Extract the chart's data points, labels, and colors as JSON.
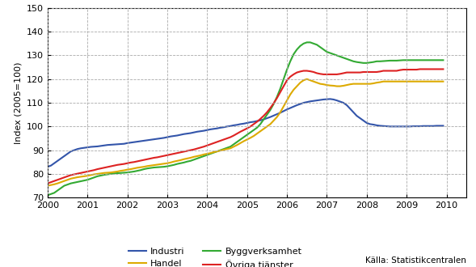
{
  "title": "",
  "ylabel": "Index (2005=100)",
  "source": "Källa: Statistikcentralen",
  "ylim": [
    70,
    150
  ],
  "yticks": [
    70,
    80,
    90,
    100,
    110,
    120,
    130,
    140,
    150
  ],
  "xlim": [
    2000,
    2010.5
  ],
  "xticks": [
    2000,
    2001,
    2002,
    2003,
    2004,
    2005,
    2006,
    2007,
    2008,
    2009,
    2010
  ],
  "colors": {
    "Industri": "#3355aa",
    "Byggverksamhet": "#33aa33",
    "Handel": "#ddaa00",
    "Ovriga": "#dd2222"
  },
  "legend_labels": [
    "Industri",
    "Byggverksamhet",
    "Handel",
    "Övriga tjänster"
  ],
  "Industri": [
    83.0,
    83.5,
    84.5,
    85.5,
    86.5,
    87.5,
    88.5,
    89.5,
    90.0,
    90.5,
    90.8,
    91.0,
    91.2,
    91.4,
    91.5,
    91.6,
    91.8,
    92.0,
    92.2,
    92.3,
    92.4,
    92.5,
    92.6,
    92.7,
    93.0,
    93.2,
    93.4,
    93.6,
    93.8,
    94.0,
    94.2,
    94.4,
    94.6,
    94.8,
    95.0,
    95.2,
    95.5,
    95.8,
    96.0,
    96.2,
    96.5,
    96.8,
    97.0,
    97.2,
    97.5,
    97.8,
    98.0,
    98.2,
    98.5,
    98.8,
    99.0,
    99.2,
    99.5,
    99.7,
    100.0,
    100.2,
    100.5,
    100.7,
    101.0,
    101.2,
    101.5,
    101.8,
    102.0,
    102.3,
    102.6,
    103.0,
    103.5,
    104.0,
    104.6,
    105.2,
    105.8,
    106.5,
    107.2,
    107.8,
    108.4,
    109.0,
    109.5,
    110.0,
    110.3,
    110.6,
    110.8,
    111.0,
    111.2,
    111.4,
    111.5,
    111.6,
    111.4,
    111.0,
    110.5,
    110.0,
    109.0,
    107.5,
    106.0,
    104.5,
    103.5,
    102.5,
    101.5,
    101.0,
    100.8,
    100.5,
    100.3,
    100.2,
    100.1,
    100.0,
    100.0,
    100.0,
    100.0,
    100.0,
    100.0,
    100.0,
    100.1,
    100.1,
    100.1,
    100.2,
    100.2,
    100.2,
    100.2,
    100.3,
    100.3,
    100.3
  ],
  "Byggverksamhet": [
    71.0,
    71.5,
    72.0,
    73.0,
    74.0,
    75.0,
    75.5,
    76.0,
    76.3,
    76.6,
    76.9,
    77.2,
    77.5,
    78.0,
    78.5,
    79.0,
    79.3,
    79.6,
    79.8,
    80.0,
    80.2,
    80.3,
    80.4,
    80.5,
    80.6,
    80.8,
    81.0,
    81.3,
    81.6,
    82.0,
    82.3,
    82.5,
    82.7,
    82.8,
    82.9,
    83.0,
    83.2,
    83.5,
    83.8,
    84.2,
    84.5,
    84.8,
    85.2,
    85.5,
    86.0,
    86.5,
    87.0,
    87.5,
    88.0,
    88.5,
    89.0,
    89.5,
    90.0,
    90.5,
    91.0,
    91.5,
    92.5,
    93.5,
    94.5,
    95.5,
    96.5,
    97.5,
    98.5,
    99.5,
    101.0,
    103.0,
    105.0,
    107.0,
    109.5,
    112.5,
    116.0,
    120.0,
    124.0,
    127.5,
    130.5,
    132.5,
    134.0,
    135.0,
    135.5,
    135.5,
    135.0,
    134.5,
    133.5,
    132.5,
    131.5,
    131.0,
    130.5,
    130.0,
    129.5,
    129.0,
    128.5,
    128.0,
    127.5,
    127.2,
    127.0,
    126.8,
    126.8,
    127.0,
    127.2,
    127.5,
    127.5,
    127.6,
    127.7,
    127.8,
    127.8,
    127.8,
    127.9,
    128.0,
    128.0,
    128.0,
    128.0,
    128.0,
    128.0,
    128.0,
    128.0,
    128.0,
    128.0,
    128.0,
    128.0,
    128.0
  ],
  "Handel": [
    75.0,
    75.3,
    75.6,
    76.0,
    76.5,
    77.0,
    77.5,
    78.0,
    78.3,
    78.6,
    78.8,
    79.0,
    79.2,
    79.5,
    79.8,
    80.0,
    80.2,
    80.4,
    80.5,
    80.6,
    80.8,
    81.0,
    81.3,
    81.5,
    81.8,
    82.0,
    82.3,
    82.6,
    82.8,
    83.0,
    83.3,
    83.5,
    83.7,
    83.9,
    84.1,
    84.3,
    84.5,
    84.8,
    85.2,
    85.5,
    85.8,
    86.2,
    86.5,
    86.8,
    87.2,
    87.5,
    87.8,
    88.2,
    88.5,
    88.8,
    89.2,
    89.5,
    89.8,
    90.2,
    90.5,
    90.8,
    91.5,
    92.2,
    93.0,
    93.8,
    94.5,
    95.2,
    96.0,
    97.0,
    98.0,
    99.0,
    100.0,
    101.0,
    102.5,
    104.0,
    106.0,
    108.5,
    111.0,
    113.5,
    115.5,
    117.0,
    118.5,
    119.5,
    120.0,
    119.5,
    119.0,
    118.5,
    118.0,
    117.8,
    117.5,
    117.3,
    117.2,
    117.0,
    117.0,
    117.2,
    117.5,
    117.8,
    118.0,
    118.0,
    118.0,
    118.0,
    118.0,
    118.0,
    118.2,
    118.5,
    118.7,
    119.0,
    119.0,
    119.0,
    119.0,
    119.0,
    119.0,
    119.0,
    119.0,
    119.0,
    119.0,
    119.0,
    119.0,
    119.0,
    119.0,
    119.0,
    119.0,
    119.0,
    119.0,
    119.0
  ],
  "Ovriga": [
    76.0,
    76.5,
    77.0,
    77.5,
    78.0,
    78.5,
    79.0,
    79.5,
    79.8,
    80.1,
    80.4,
    80.7,
    81.0,
    81.3,
    81.6,
    82.0,
    82.3,
    82.6,
    82.9,
    83.2,
    83.5,
    83.8,
    84.0,
    84.2,
    84.5,
    84.8,
    85.0,
    85.3,
    85.6,
    85.9,
    86.2,
    86.5,
    86.8,
    87.0,
    87.3,
    87.6,
    87.9,
    88.2,
    88.5,
    88.8,
    89.1,
    89.4,
    89.7,
    90.0,
    90.3,
    90.7,
    91.1,
    91.5,
    92.0,
    92.5,
    93.0,
    93.5,
    94.0,
    94.5,
    95.0,
    95.5,
    96.2,
    97.0,
    97.8,
    98.5,
    99.2,
    100.0,
    101.0,
    102.0,
    103.2,
    104.5,
    106.0,
    107.8,
    109.8,
    112.0,
    114.5,
    117.0,
    119.5,
    121.0,
    122.0,
    122.8,
    123.2,
    123.5,
    123.5,
    123.3,
    123.0,
    122.5,
    122.2,
    122.0,
    122.0,
    122.0,
    122.0,
    122.0,
    122.2,
    122.5,
    122.8,
    122.8,
    122.8,
    122.8,
    122.8,
    123.0,
    123.0,
    123.0,
    123.0,
    123.0,
    123.2,
    123.5,
    123.5,
    123.5,
    123.5,
    123.5,
    123.8,
    124.0,
    124.0,
    124.0,
    124.0,
    124.0,
    124.2,
    124.2,
    124.2,
    124.2,
    124.2,
    124.2,
    124.2,
    124.2
  ],
  "n_points": 120,
  "start_year": 2000.0,
  "end_year": 2009.916,
  "background_color": "#ffffff",
  "grid_color": "#aaaaaa",
  "linewidth": 1.5
}
